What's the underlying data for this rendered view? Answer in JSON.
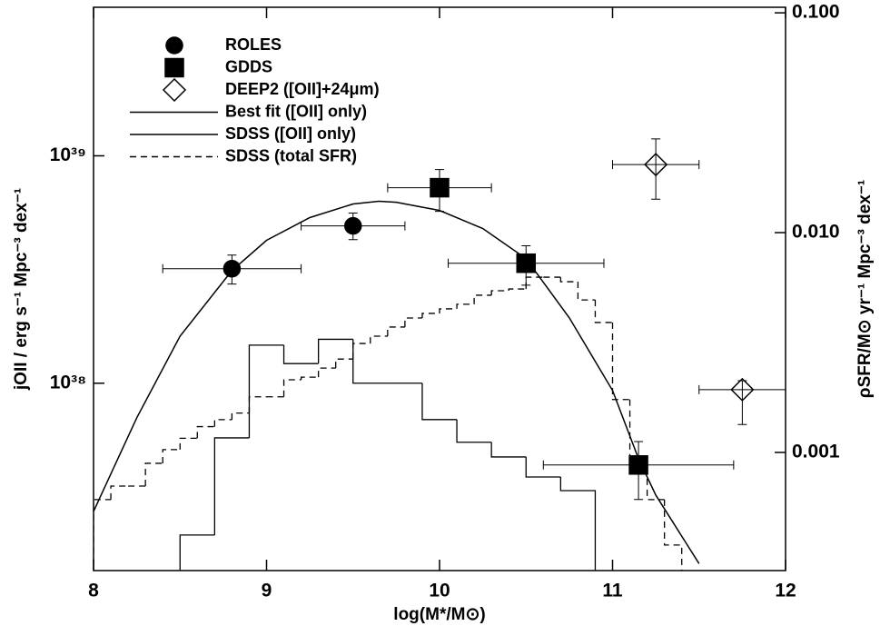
{
  "chart_data": {
    "type": "scatter",
    "x_label": "log(M*/M⊙)",
    "y_label": "jOII / erg s⁻¹ Mpc⁻³ dex⁻¹",
    "y2_label": "ρSFR/M⊙ yr⁻¹ Mpc⁻³ dex⁻¹",
    "xlim": [
      8,
      12
    ],
    "xticks": [
      8,
      9,
      10,
      11,
      12
    ],
    "ylim": [
      1.5e+37,
      4.5e+39
    ],
    "ylog": true,
    "yticks": [
      {
        "value": 1e+38,
        "label": "10³⁸"
      },
      {
        "value": 1e+39,
        "label": "10³⁹"
      }
    ],
    "y2lim": [
      0.00029,
      0.106
    ],
    "y2log": true,
    "y2ticks": [
      0.001,
      {
        "value": 0.01,
        "label": "0.010"
      },
      {
        "value": 0.1,
        "label": "0.100"
      }
    ],
    "series": [
      {
        "name": "ROLES",
        "type": "errorbar",
        "marker": "circle",
        "filled": true,
        "color": "#000000",
        "x": [
          8.8,
          9.5
        ],
        "xerr": [
          0.4,
          0.3
        ],
        "values": [
          3.19e+38,
          4.92e+38
        ],
        "yerr_minus": [
          4.6e+37,
          6.4e+37
        ],
        "yerr_plus": [
          4.7e+37,
          6.8e+37
        ]
      },
      {
        "name": "GDDS",
        "type": "errorbar",
        "marker": "square",
        "filled": true,
        "color": "#000000",
        "x": [
          10.0,
          10.5,
          11.15
        ],
        "xerr": [
          0.3,
          0.45,
          0.55
        ],
        "values": [
          7.24e+38,
          3.37e+38,
          4.37e+37
        ],
        "yerr_minus": [
          1.54e+38,
          6.7e+37,
          1.29e+37
        ],
        "yerr_plus": [
          1.46e+38,
          6.5e+37,
          1.17e+37
        ]
      },
      {
        "name": "DEEP2 ([OII]+24μm)",
        "type": "errorbar",
        "marker": "diamond",
        "filled": false,
        "color": "#000000",
        "axis": "y2",
        "x": [
          11.25,
          11.75
        ],
        "xerr": [
          0.25,
          0.25
        ],
        "values": [
          0.0204,
          0.00193
        ],
        "yerr_minus": [
          0.0062,
          0.00059
        ],
        "yerr_plus": [
          0.0063,
          0.00019
        ]
      },
      {
        "name": "Best fit ([OII] only)",
        "type": "line",
        "dash": "solid",
        "color": "#000000",
        "x": [
          8,
          8.25,
          8.5,
          8.8,
          9.0,
          9.25,
          9.5,
          9.65,
          9.75,
          10,
          10.25,
          10.5,
          10.75,
          11,
          11.15,
          11.25,
          11.5
        ],
        "values": [
          2.73e+37,
          7.05e+37,
          1.61e+38,
          3.13e+38,
          4.25e+38,
          5.35e+38,
          6.14e+38,
          6.31e+38,
          6.25e+38,
          5.75e+38,
          4.79e+38,
          3.53e+38,
          1.94e+38,
          9.29e+37,
          4.66e+37,
          3.22e+37,
          1.61e+37
        ]
      },
      {
        "name": "SDSS ([OII] only)",
        "type": "histogram",
        "dash": "solid",
        "color": "#000000",
        "bins": [
          8.5,
          8.7,
          8.9,
          9.1,
          9.3,
          9.5,
          9.7,
          9.9,
          10.1,
          10.3,
          10.5,
          10.7,
          10.9
        ],
        "values": [
          2.15e+37,
          5.75e+37,
          1.47e+38,
          1.22e+38,
          1.56e+38,
          1e+38,
          1e+38,
          6.92e+37,
          5.5e+37,
          4.74e+37,
          3.87e+37,
          3.37e+37
        ]
      },
      {
        "name": "SDSS (total SFR)",
        "type": "histogram",
        "dash": "dashed",
        "color": "#000000",
        "axis": "y2",
        "bins": [
          8.0,
          8.1,
          8.2,
          8.3,
          8.4,
          8.5,
          8.6,
          8.7,
          8.8,
          8.9,
          9.0,
          9.1,
          9.2,
          9.3,
          9.4,
          9.5,
          9.6,
          9.7,
          9.8,
          9.9,
          10.0,
          10.1,
          10.2,
          10.3,
          10.4,
          10.5,
          10.6,
          10.7,
          10.8,
          10.9,
          11.0,
          11.1,
          11.2,
          11.3,
          11.4
        ],
        "values": [
          0.00061,
          0.000703,
          0.000703,
          0.000892,
          0.00103,
          0.00116,
          0.00131,
          0.00141,
          0.00151,
          0.00179,
          0.00179,
          0.00214,
          0.0022,
          0.00242,
          0.00266,
          0.00313,
          0.00338,
          0.00372,
          0.00409,
          0.00429,
          0.0045,
          0.00472,
          0.00519,
          0.00544,
          0.00554,
          0.00627,
          0.00627,
          0.00598,
          0.00494,
          0.0039,
          0.00174,
          0.000851,
          0.00061,
          0.000379
        ]
      }
    ]
  }
}
